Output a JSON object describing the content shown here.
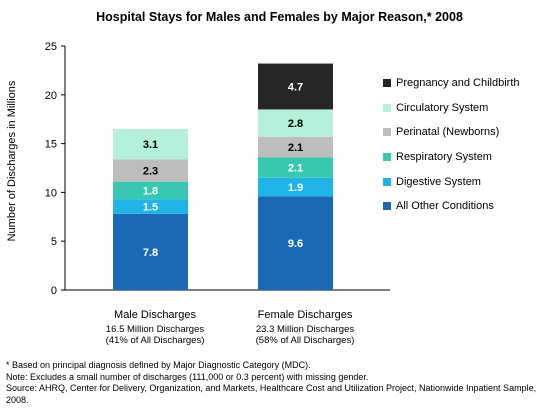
{
  "chart_data": {
    "type": "bar",
    "stacked": true,
    "title": "Hospital Stays for Males and Females by Major Reason,* 2008",
    "ylabel": "Number of Discharges in Millions",
    "ylim": [
      0,
      25
    ],
    "yticks": [
      "0",
      "5",
      "10",
      "15",
      "20",
      "25"
    ],
    "grid": false,
    "legend_position": "right",
    "categories": [
      "Male Discharges",
      "Female Discharges"
    ],
    "category_subtitles": [
      [
        "16.5 Million Discharges",
        "(41% of All Discharges)"
      ],
      [
        "23.3 Million Discharges",
        "(58% of All Discharges)"
      ]
    ],
    "series": [
      {
        "name": "All Other Conditions",
        "color": "#1b69b4",
        "values": [
          7.8,
          9.6
        ],
        "labels": [
          "7.8",
          "9.6"
        ]
      },
      {
        "name": "Digestive System",
        "color": "#1fb3e6",
        "values": [
          1.5,
          1.9
        ],
        "labels": [
          "1.5",
          "1.9"
        ]
      },
      {
        "name": "Respiratory System",
        "color": "#38c7b0",
        "values": [
          1.8,
          2.1
        ],
        "labels": [
          "1.8",
          "2.1"
        ]
      },
      {
        "name": "Perinatal (Newborns)",
        "color": "#bdbdbd",
        "values": [
          2.3,
          2.1
        ],
        "labels": [
          "2.3",
          "2.1"
        ]
      },
      {
        "name": "Circulatory System",
        "color": "#b5f0da",
        "values": [
          3.1,
          2.8
        ],
        "labels": [
          "3.1",
          "2.8"
        ]
      },
      {
        "name": "Pregnancy and Childbirth",
        "color": "#262626",
        "values": [
          0,
          4.7
        ],
        "labels": [
          "",
          "4.7"
        ]
      }
    ],
    "legend_order": [
      "Pregnancy and Childbirth",
      "Circulatory System",
      "Perinatal (Newborns)",
      "Respiratory System",
      "Digestive System",
      "All Other Conditions"
    ]
  },
  "footnotes": [
    "* Based on principal diagnosis defined by Major Diagnostic Category (MDC).",
    "Note: Excludes a small number of discharges (111,000 or 0.3 percent) with missing gender.",
    "Source: AHRQ, Center for Delivery, Organization, and Markets, Healthcare Cost and Utilization Project, Nationwide Inpatient Sample, 2008."
  ]
}
